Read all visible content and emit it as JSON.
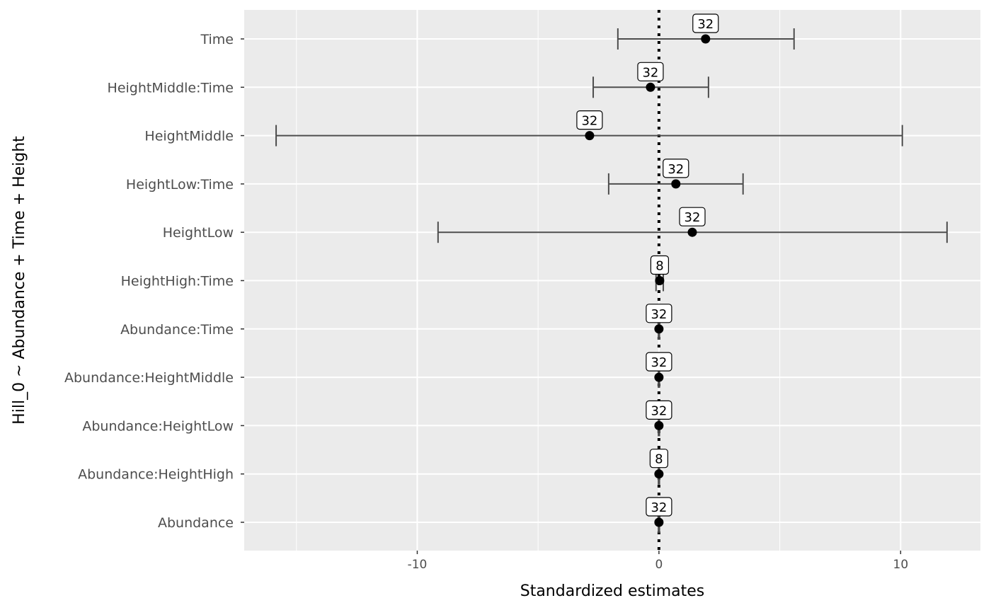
{
  "chart_data": {
    "type": "coefficient-plot",
    "xlabel": "Standardized estimates",
    "ylabel": "Hill_0 ~ Abundance + Time + Height",
    "xlim": [
      -17.16,
      13.3
    ],
    "x_ticks": [
      -10,
      0,
      10
    ],
    "x_tick_labels": [
      "-10",
      "0",
      "10"
    ],
    "reference_line": 0,
    "grid": true,
    "background": "#EBEBEB",
    "terms": [
      {
        "term": "Time",
        "estimate": 1.93,
        "ci_low": -1.7,
        "ci_high": 5.59,
        "n": "32"
      },
      {
        "term": "HeightMiddle:Time",
        "estimate": -0.35,
        "ci_low": -2.72,
        "ci_high": 2.05,
        "n": "32"
      },
      {
        "term": "HeightMiddle",
        "estimate": -2.87,
        "ci_low": -15.84,
        "ci_high": 10.07,
        "n": "32"
      },
      {
        "term": "HeightLow:Time",
        "estimate": 0.7,
        "ci_low": -2.08,
        "ci_high": 3.48,
        "n": "32"
      },
      {
        "term": "HeightLow",
        "estimate": 1.38,
        "ci_low": -9.14,
        "ci_high": 11.92,
        "n": "32"
      },
      {
        "term": "HeightHigh:Time",
        "estimate": 0.03,
        "ci_low": -0.12,
        "ci_high": 0.18,
        "n": "8"
      },
      {
        "term": "Abundance:Time",
        "estimate": 0.0,
        "ci_low": -0.02,
        "ci_high": 0.02,
        "n": "32"
      },
      {
        "term": "Abundance:HeightMiddle",
        "estimate": 0.0,
        "ci_low": -0.02,
        "ci_high": 0.02,
        "n": "32"
      },
      {
        "term": "Abundance:HeightLow",
        "estimate": 0.0,
        "ci_low": -0.02,
        "ci_high": 0.02,
        "n": "32"
      },
      {
        "term": "Abundance:HeightHigh",
        "estimate": 0.0,
        "ci_low": -0.02,
        "ci_high": 0.02,
        "n": "8"
      },
      {
        "term": "Abundance",
        "estimate": 0.0,
        "ci_low": -0.02,
        "ci_high": 0.02,
        "n": "32"
      }
    ]
  }
}
